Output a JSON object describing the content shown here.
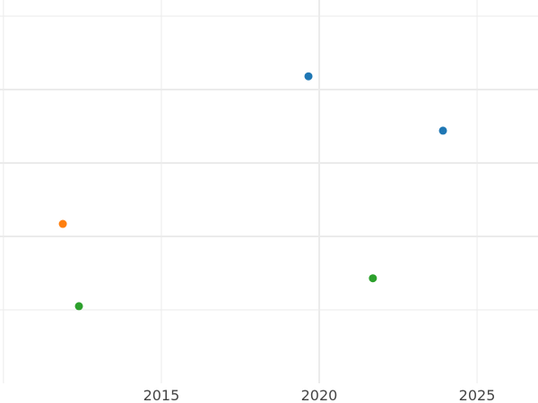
{
  "chart_data": {
    "type": "scatter",
    "title": "",
    "xlabel": "",
    "ylabel": "",
    "xlim": [
      2009.89,
      2026.93
    ],
    "ylim": [
      0,
      5.2
    ],
    "x_ticks": [
      2010,
      2015,
      2020,
      2025
    ],
    "x_tick_labels": [
      "",
      "2015",
      "2020",
      "2025"
    ],
    "y_gridlines": [
      1,
      2,
      3,
      4,
      5
    ],
    "grid": true,
    "series": [
      {
        "color": "#1f77b4",
        "points": [
          {
            "x": 2019.66,
            "y": 4.18
          },
          {
            "x": 2023.92,
            "y": 3.44
          }
        ]
      },
      {
        "color": "#ff7f0e",
        "points": [
          {
            "x": 2011.88,
            "y": 2.17
          }
        ]
      },
      {
        "color": "#2ca02c",
        "points": [
          {
            "x": 2012.39,
            "y": 1.05
          },
          {
            "x": 2021.7,
            "y": 1.43
          }
        ]
      }
    ]
  }
}
